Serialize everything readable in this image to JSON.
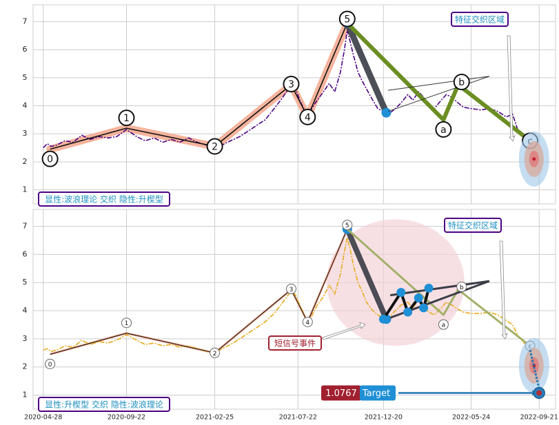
{
  "colors": {
    "grid": "#cccccc",
    "axis_text": "#222222",
    "top_price": "#4b0082",
    "bottom_price": "#e8b02e",
    "salmon": "#f4a78c",
    "dark_leg": "#3a3d47",
    "green_leg": "#6b8e23",
    "olive_leg": "#a3b06a",
    "label_purple": "#4b0082",
    "label_text": "#1f8fc0",
    "blue_dot": "#1f8fd6",
    "pink_circle": "#f3cfd6",
    "signal_red": "#a0202f",
    "target_blue": "#1f8fd6",
    "target_bg": "#ffffff"
  },
  "x_axis": {
    "ticks": [
      "2020-04-28",
      "2020-09-22",
      "2021-02-25",
      "2021-07-22",
      "2021-12-20",
      "2022-05-24",
      "2022-09-21"
    ]
  },
  "panels": {
    "top": {
      "caption": "显性:波浪理论 交织 隐性:升楔型",
      "feature_label": "特征交织区域"
    },
    "bottom": {
      "caption": "显性:升楔型 交织 隐性:波浪理论",
      "feature_label": "特征交织区域",
      "signal_label": "短信号事件",
      "target_value": "1.0767",
      "target_label": "Target"
    }
  },
  "chart_data": [
    {
      "type": "line",
      "panel": "top",
      "x_range": [
        "2020-04-10",
        "2022-10-20"
      ],
      "ylim": [
        0.5,
        7.6
      ],
      "yticks": [
        1,
        2,
        3,
        4,
        5,
        6,
        7
      ],
      "grid": true,
      "series": [
        {
          "style": "dash-dot",
          "points": [
            [
              "2020-04-28",
              2.5
            ],
            [
              "2020-05-05",
              2.65
            ],
            [
              "2020-05-12",
              2.55
            ],
            [
              "2020-05-22",
              2.6
            ],
            [
              "2020-06-05",
              2.75
            ],
            [
              "2020-06-20",
              2.7
            ],
            [
              "2020-07-05",
              2.95
            ],
            [
              "2020-07-20",
              2.8
            ],
            [
              "2020-08-05",
              2.9
            ],
            [
              "2020-08-20",
              2.85
            ],
            [
              "2020-09-05",
              2.9
            ],
            [
              "2020-09-22",
              3.15
            ],
            [
              "2020-10-10",
              2.9
            ],
            [
              "2020-10-25",
              2.75
            ],
            [
              "2020-11-10",
              2.85
            ],
            [
              "2020-11-25",
              2.7
            ],
            [
              "2020-12-10",
              2.8
            ],
            [
              "2020-12-25",
              2.7
            ],
            [
              "2021-01-10",
              2.85
            ],
            [
              "2021-01-25",
              2.7
            ],
            [
              "2021-02-10",
              2.6
            ],
            [
              "2021-02-25",
              2.45
            ],
            [
              "2021-03-10",
              2.6
            ],
            [
              "2021-03-25",
              2.75
            ],
            [
              "2021-04-10",
              2.9
            ],
            [
              "2021-04-25",
              3.1
            ],
            [
              "2021-05-10",
              3.3
            ],
            [
              "2021-05-25",
              3.5
            ],
            [
              "2021-06-10",
              3.9
            ],
            [
              "2021-06-25",
              4.3
            ],
            [
              "2021-07-10",
              4.75
            ],
            [
              "2021-07-18",
              4.6
            ],
            [
              "2021-07-25",
              4.2
            ],
            [
              "2021-08-01",
              3.9
            ],
            [
              "2021-08-08",
              3.5
            ],
            [
              "2021-08-15",
              3.9
            ],
            [
              "2021-08-25",
              4.2
            ],
            [
              "2021-09-05",
              4.5
            ],
            [
              "2021-09-15",
              4.8
            ],
            [
              "2021-09-25",
              4.5
            ],
            [
              "2021-10-05",
              5.2
            ],
            [
              "2021-10-12",
              6.0
            ],
            [
              "2021-10-17",
              6.7
            ],
            [
              "2021-10-22",
              6.3
            ],
            [
              "2021-10-28",
              5.8
            ],
            [
              "2021-11-05",
              5.2
            ],
            [
              "2021-11-12",
              4.9
            ],
            [
              "2021-11-20",
              4.6
            ],
            [
              "2021-12-01",
              4.2
            ],
            [
              "2021-12-10",
              3.9
            ],
            [
              "2021-12-20",
              3.8
            ],
            [
              "2022-01-01",
              3.75
            ],
            [
              "2022-01-10",
              3.9
            ],
            [
              "2022-01-20",
              4.1
            ],
            [
              "2022-02-01",
              4.4
            ],
            [
              "2022-02-10",
              4.2
            ],
            [
              "2022-02-20",
              4.5
            ],
            [
              "2022-03-01",
              4.3
            ],
            [
              "2022-03-10",
              4.0
            ],
            [
              "2022-03-20",
              3.9
            ],
            [
              "2022-04-01",
              4.2
            ],
            [
              "2022-04-10",
              4.4
            ],
            [
              "2022-04-20",
              4.3
            ],
            [
              "2022-05-01",
              4.1
            ],
            [
              "2022-05-10",
              3.95
            ],
            [
              "2022-05-24",
              3.9
            ],
            [
              "2022-06-10",
              3.85
            ],
            [
              "2022-06-25",
              3.9
            ],
            [
              "2022-07-10",
              3.8
            ],
            [
              "2022-07-25",
              3.6
            ],
            [
              "2022-08-05",
              3.7
            ],
            [
              "2022-08-15",
              3.1
            ],
            [
              "2022-08-25",
              2.9
            ],
            [
              "2022-09-05",
              2.95
            ]
          ]
        }
      ],
      "wave_points": [
        {
          "label": "0",
          "x": "2020-05-10",
          "y": 2.45
        },
        {
          "label": "1",
          "x": "2020-09-22",
          "y": 3.2
        },
        {
          "label": "2",
          "x": "2021-02-25",
          "y": 2.55
        },
        {
          "label": "3",
          "x": "2021-07-10",
          "y": 4.75
        },
        {
          "label": "4",
          "x": "2021-08-08",
          "y": 3.6
        },
        {
          "label": "5",
          "x": "2021-10-17",
          "y": 6.95
        },
        {
          "label": "a",
          "x": "2022-04-05",
          "y": 3.5
        },
        {
          "label": "b",
          "x": "2022-05-01",
          "y": 4.75
        },
        {
          "label": "c",
          "x": "2022-09-05",
          "y": 2.75
        }
      ],
      "target_value": 1.0767
    },
    {
      "type": "line",
      "panel": "bottom",
      "x_range": [
        "2020-04-10",
        "2022-10-20"
      ],
      "ylim": [
        0.5,
        7.6
      ],
      "yticks": [
        1,
        2,
        3,
        4,
        5,
        6,
        7
      ],
      "grid": true,
      "series": [
        {
          "style": "dash-dot",
          "points": [
            [
              "2020-04-28",
              2.6
            ],
            [
              "2020-05-05",
              2.65
            ],
            [
              "2020-05-12",
              2.55
            ],
            [
              "2020-05-22",
              2.6
            ],
            [
              "2020-06-05",
              2.75
            ],
            [
              "2020-06-20",
              2.7
            ],
            [
              "2020-07-05",
              2.95
            ],
            [
              "2020-07-20",
              2.8
            ],
            [
              "2020-08-05",
              2.9
            ],
            [
              "2020-08-20",
              2.85
            ],
            [
              "2020-09-05",
              2.95
            ],
            [
              "2020-09-22",
              3.15
            ],
            [
              "2020-10-10",
              2.95
            ],
            [
              "2020-10-25",
              2.8
            ],
            [
              "2020-11-10",
              2.85
            ],
            [
              "2020-11-25",
              2.75
            ],
            [
              "2020-12-10",
              2.8
            ],
            [
              "2020-12-25",
              2.7
            ],
            [
              "2021-01-10",
              2.75
            ],
            [
              "2021-01-25",
              2.65
            ],
            [
              "2021-02-10",
              2.55
            ],
            [
              "2021-02-25",
              2.5
            ],
            [
              "2021-03-10",
              2.65
            ],
            [
              "2021-03-25",
              2.8
            ],
            [
              "2021-04-10",
              3.0
            ],
            [
              "2021-04-25",
              3.2
            ],
            [
              "2021-05-10",
              3.4
            ],
            [
              "2021-05-25",
              3.6
            ],
            [
              "2021-06-10",
              3.9
            ],
            [
              "2021-06-25",
              4.3
            ],
            [
              "2021-07-10",
              4.7
            ],
            [
              "2021-07-18",
              4.55
            ],
            [
              "2021-07-25",
              4.2
            ],
            [
              "2021-08-01",
              3.9
            ],
            [
              "2021-08-08",
              3.5
            ],
            [
              "2021-08-15",
              3.8
            ],
            [
              "2021-08-25",
              4.2
            ],
            [
              "2021-09-05",
              4.5
            ],
            [
              "2021-09-15",
              4.9
            ],
            [
              "2021-09-25",
              4.6
            ],
            [
              "2021-10-05",
              5.3
            ],
            [
              "2021-10-12",
              6.1
            ],
            [
              "2021-10-17",
              6.6
            ],
            [
              "2021-10-22",
              6.2
            ],
            [
              "2021-10-28",
              5.6
            ],
            [
              "2021-11-05",
              5.0
            ],
            [
              "2021-11-12",
              4.7
            ],
            [
              "2021-11-20",
              4.3
            ],
            [
              "2021-12-01",
              4.0
            ],
            [
              "2021-12-10",
              3.85
            ],
            [
              "2021-12-20",
              3.75
            ],
            [
              "2022-01-01",
              3.8
            ],
            [
              "2022-01-10",
              4.0
            ],
            [
              "2022-01-20",
              4.2
            ],
            [
              "2022-02-01",
              4.3
            ],
            [
              "2022-02-10",
              4.1
            ],
            [
              "2022-02-20",
              4.4
            ],
            [
              "2022-03-01",
              4.2
            ],
            [
              "2022-03-10",
              3.95
            ],
            [
              "2022-03-20",
              3.85
            ],
            [
              "2022-04-01",
              4.1
            ],
            [
              "2022-04-10",
              4.3
            ],
            [
              "2022-04-20",
              4.2
            ],
            [
              "2022-05-01",
              4.05
            ],
            [
              "2022-05-10",
              3.95
            ],
            [
              "2022-05-24",
              3.9
            ],
            [
              "2022-06-10",
              3.9
            ],
            [
              "2022-06-25",
              3.95
            ],
            [
              "2022-07-10",
              3.85
            ],
            [
              "2022-07-25",
              3.65
            ],
            [
              "2022-08-05",
              3.5
            ],
            [
              "2022-08-15",
              3.1
            ],
            [
              "2022-08-25",
              2.85
            ],
            [
              "2022-09-05",
              2.8
            ]
          ]
        }
      ],
      "wave_points": [
        {
          "label": "0",
          "x": "2020-05-10",
          "y": 2.45
        },
        {
          "label": "1",
          "x": "2020-09-22",
          "y": 3.2
        },
        {
          "label": "2",
          "x": "2021-02-25",
          "y": 2.5
        },
        {
          "label": "3",
          "x": "2021-07-10",
          "y": 4.75
        },
        {
          "label": "4",
          "x": "2021-08-08",
          "y": 3.6
        },
        {
          "label": "5",
          "x": "2021-10-17",
          "y": 6.9
        },
        {
          "label": "a",
          "x": "2022-04-05",
          "y": 3.85
        },
        {
          "label": "b",
          "x": "2022-05-01",
          "y": 4.75
        },
        {
          "label": "c",
          "x": "2022-09-05",
          "y": 2.75
        }
      ],
      "wedge_points": [
        {
          "x": "2021-12-20",
          "y": 3.7
        },
        {
          "x": "2022-01-20",
          "y": 4.65
        },
        {
          "x": "2022-02-01",
          "y": 3.95
        },
        {
          "x": "2022-02-20",
          "y": 4.45
        },
        {
          "x": "2022-03-01",
          "y": 4.1
        },
        {
          "x": "2022-03-10",
          "y": 4.8
        }
      ],
      "target_value": 1.0767
    }
  ]
}
